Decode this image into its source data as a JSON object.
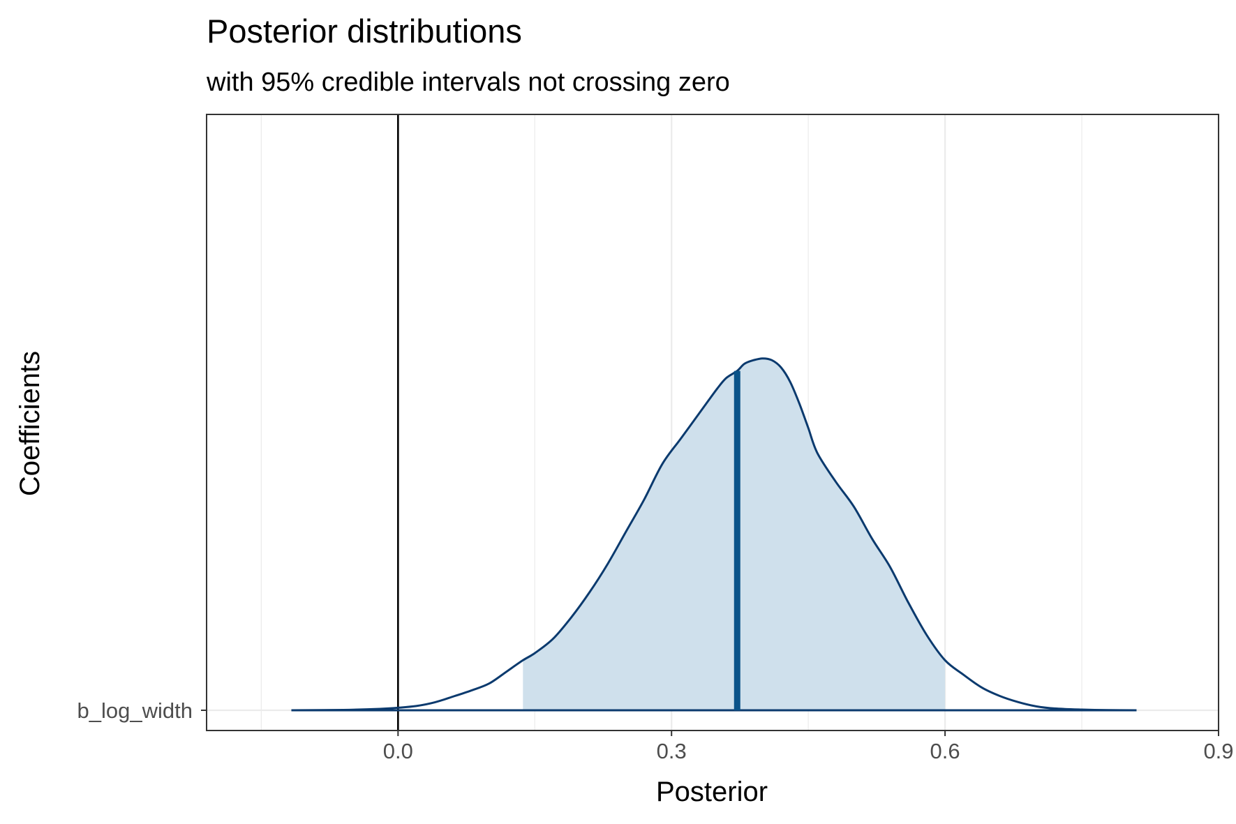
{
  "chart_data": {
    "type": "area",
    "title": "Posterior distributions",
    "subtitle": "with 95% credible intervals not crossing zero",
    "xlabel": "Posterior",
    "ylabel": "Coefficients",
    "xlim": [
      -0.21,
      0.9
    ],
    "x_ticks": [
      "0.0",
      "0.3",
      "0.6",
      "0.9"
    ],
    "x_tick_values": [
      0.0,
      0.3,
      0.6,
      0.9
    ],
    "y_categories": [
      "b_log_width"
    ],
    "grid": true,
    "reference_line_x": 0.0,
    "median": 0.372,
    "credible_interval_95": [
      0.137,
      0.6
    ],
    "density": {
      "x": [
        -0.117,
        -0.06,
        -0.02,
        0.0,
        0.02,
        0.04,
        0.06,
        0.08,
        0.1,
        0.12,
        0.137,
        0.15,
        0.17,
        0.19,
        0.21,
        0.23,
        0.25,
        0.27,
        0.29,
        0.31,
        0.33,
        0.35,
        0.36,
        0.372,
        0.38,
        0.39,
        0.4,
        0.41,
        0.42,
        0.43,
        0.44,
        0.45,
        0.46,
        0.48,
        0.5,
        0.52,
        0.54,
        0.56,
        0.58,
        0.6,
        0.62,
        0.64,
        0.66,
        0.68,
        0.7,
        0.72,
        0.75,
        0.78,
        0.81
      ],
      "y": [
        0.0,
        0.001,
        0.004,
        0.007,
        0.012,
        0.022,
        0.038,
        0.055,
        0.075,
        0.11,
        0.14,
        0.16,
        0.2,
        0.26,
        0.33,
        0.41,
        0.5,
        0.59,
        0.69,
        0.76,
        0.83,
        0.9,
        0.93,
        0.95,
        0.97,
        0.98,
        0.985,
        0.98,
        0.96,
        0.92,
        0.86,
        0.79,
        0.72,
        0.64,
        0.57,
        0.48,
        0.4,
        0.3,
        0.21,
        0.14,
        0.1,
        0.064,
        0.04,
        0.023,
        0.011,
        0.005,
        0.002,
        0.0005,
        0.0
      ]
    },
    "colors": {
      "outline": "#0b3a6e",
      "fill": "#cfe0ec",
      "median_line": "#0a5389",
      "zero_line": "#000000",
      "grid": "#ebebeb",
      "panel_border": "#333333"
    }
  }
}
